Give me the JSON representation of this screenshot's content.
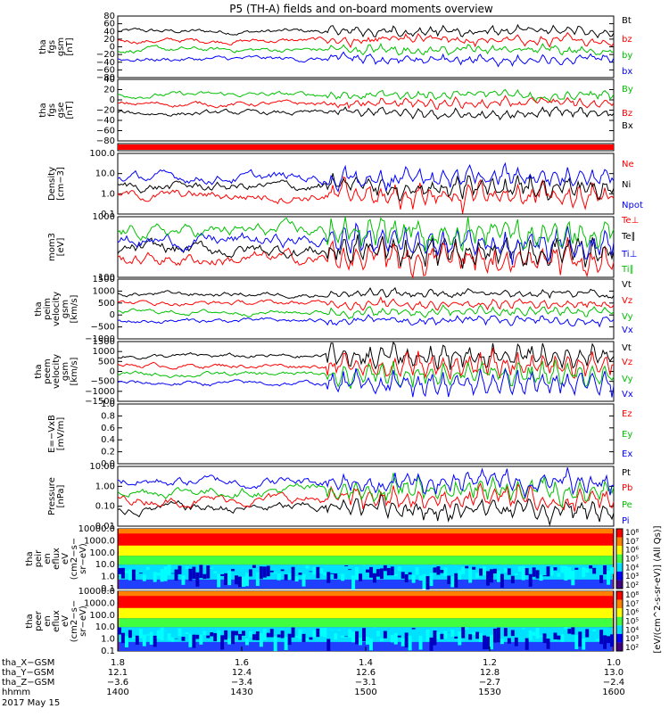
{
  "title": "P5 (TH-A) fields and on-board moments overview",
  "chart_data": [
    {
      "type": "line",
      "ylabel": [
        "tha",
        "fgs",
        "gsm",
        "[nT]"
      ],
      "ylim": [
        -80,
        80
      ],
      "yticks": [
        "80",
        "60",
        "40",
        "20",
        "0",
        "−20",
        "−40",
        "−60",
        "−80"
      ],
      "legend": [
        {
          "label": "Bt",
          "color": "#000000"
        },
        {
          "label": "bz",
          "color": "#ff0000"
        },
        {
          "label": "by",
          "color": "#00c000"
        },
        {
          "label": "bx",
          "color": "#0000ff"
        }
      ]
    },
    {
      "type": "line",
      "ylabel": [
        "tha",
        "fgs",
        "gse",
        "[nT]"
      ],
      "ylim": [
        -80,
        40
      ],
      "yticks": [
        "40",
        "20",
        "0",
        "−20",
        "−40",
        "−60",
        "−80"
      ],
      "legend": [
        {
          "label": "By",
          "color": "#00c000"
        },
        {
          "label": "Bz",
          "color": "#ff0000"
        },
        {
          "label": "Bx",
          "color": "#000000"
        }
      ]
    },
    {
      "type": "bar",
      "ylabel": [],
      "color": "#ff0000"
    },
    {
      "type": "line",
      "scale": "log",
      "ylabel": [
        "Density",
        "[cm−3]"
      ],
      "ylim": [
        0.1,
        100
      ],
      "yticks": [
        "100.0",
        "10.0",
        "1.0",
        "0.1"
      ],
      "legend": [
        {
          "label": "Ne",
          "color": "#ff0000"
        },
        {
          "label": "Ni",
          "color": "#000000"
        },
        {
          "label": "Npot",
          "color": "#0000ff"
        }
      ]
    },
    {
      "type": "line",
      "scale": "log",
      "ylabel": [
        "mom3",
        "[eV]"
      ],
      "ylim": [
        30,
        5000
      ],
      "yticks": [
        "1000",
        "100"
      ],
      "legend": [
        {
          "label": "Te⊥",
          "color": "#ff0000"
        },
        {
          "label": "Te∥",
          "color": "#000000"
        },
        {
          "label": "Ti⊥",
          "color": "#0000ff"
        },
        {
          "label": "Ti∥",
          "color": "#00c000"
        }
      ]
    },
    {
      "type": "line",
      "ylabel": [
        "tha",
        "peim",
        "velocity",
        "gsm",
        "[km/s]"
      ],
      "ylim": [
        -1000,
        1500
      ],
      "yticks": [
        "1500",
        "1000",
        "500",
        "0",
        "−500",
        "−1000"
      ],
      "legend": [
        {
          "label": "Vt",
          "color": "#000000"
        },
        {
          "label": "Vz",
          "color": "#ff0000"
        },
        {
          "label": "Vy",
          "color": "#00c000"
        },
        {
          "label": "Vx",
          "color": "#0000ff"
        }
      ]
    },
    {
      "type": "line",
      "ylabel": [
        "tha",
        "peem",
        "velocity",
        "gsm",
        "[km/s]"
      ],
      "ylim": [
        -1500,
        1500
      ],
      "yticks": [
        "1500",
        "1000",
        "500",
        "0",
        "−500",
        "−1000",
        "−1500"
      ],
      "legend": [
        {
          "label": "Vt",
          "color": "#000000"
        },
        {
          "label": "Vz",
          "color": "#ff0000"
        },
        {
          "label": "Vy",
          "color": "#00c000"
        },
        {
          "label": "Vx",
          "color": "#0000ff"
        }
      ]
    },
    {
      "type": "line",
      "ylabel": [
        "E=−VxB",
        "[mV/m]"
      ],
      "ylim": [
        0,
        1
      ],
      "yticks": [
        "1.0",
        "0.8",
        "0.6",
        "0.4",
        "0.2",
        "0.0"
      ],
      "legend": [
        {
          "label": "Ez",
          "color": "#ff0000"
        },
        {
          "label": "Ey",
          "color": "#00c000"
        },
        {
          "label": "Ex",
          "color": "#0000ff"
        }
      ]
    },
    {
      "type": "line",
      "scale": "log",
      "ylabel": [
        "Pressure",
        "[nPa]"
      ],
      "ylim": [
        0.01,
        10
      ],
      "yticks": [
        "10.00",
        "1.00",
        "0.10",
        "0.01"
      ],
      "legend": [
        {
          "label": "Pt",
          "color": "#000000"
        },
        {
          "label": "Pb",
          "color": "#ff0000"
        },
        {
          "label": "Pe",
          "color": "#00c000"
        },
        {
          "label": "Pi",
          "color": "#0000ff"
        }
      ]
    },
    {
      "type": "heatmap",
      "scale": "log",
      "ylabel": [
        "tha",
        "peir",
        "en",
        "eflux",
        "eV",
        "(cm2−s−",
        "sr−eV)"
      ],
      "ylim": [
        0.05,
        30000
      ],
      "yticks": [
        "10000.0",
        "1000.0",
        "100.0",
        "10.0",
        "1.0",
        "0.1"
      ],
      "colorbar_ticks": [
        "10⁸",
        "10⁷",
        "10⁶",
        "10⁵",
        "10⁴",
        "10³",
        "10²"
      ]
    },
    {
      "type": "heatmap",
      "scale": "log",
      "ylabel": [
        "tha",
        "peer",
        "en",
        "eflux",
        "eV",
        "(cm2−s−",
        "sr−eV)"
      ],
      "ylim": [
        0.05,
        30000
      ],
      "yticks": [
        "10000.0",
        "1000.0",
        "100.0",
        "10.0",
        "1.0",
        "0.1"
      ],
      "colorbar_ticks": [
        "10⁸",
        "10⁷",
        "10⁶",
        "10⁵",
        "10⁴",
        "10³",
        "10²"
      ]
    }
  ],
  "colorbar_label": "[eV/(cm^2-s-sr-eV)] (All Qs)]",
  "xaxis": {
    "rows": [
      {
        "label": "tha_X−GSM",
        "values": [
          "12.1",
          "12.4",
          "12.6",
          "12.8",
          "13.0"
        ]
      },
      {
        "label": "tha_Y−GSM",
        "values": [
          "1.8",
          "1.6",
          "1.4",
          "1.2",
          "1.0"
        ],
        "top": true
      },
      {
        "label": "tha_Z−GSM",
        "values": [
          "−3.6",
          "−3.4",
          "−3.1",
          "−2.7",
          "−2.4"
        ]
      },
      {
        "label": "hhmm",
        "values": [
          "1400",
          "1430",
          "1500",
          "1530",
          "1600"
        ]
      }
    ],
    "date": "2017 May 15"
  }
}
